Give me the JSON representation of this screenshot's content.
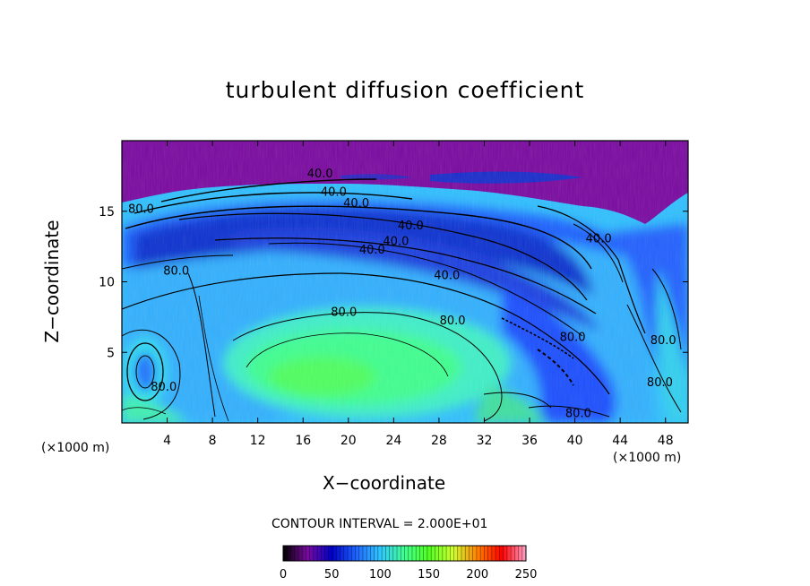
{
  "chart_data": {
    "type": "heatmap",
    "title": "turbulent diffusion coefficient",
    "xlabel": "X−coordinate",
    "ylabel": "Z−coordinate",
    "x_unit_label": "(×1000 m)",
    "x_unit_label_right": "(×1000 m)",
    "xlim": [
      0,
      50
    ],
    "ylim": [
      0,
      20
    ],
    "x_ticks": [
      4,
      8,
      12,
      16,
      20,
      24,
      28,
      32,
      36,
      40,
      44,
      48
    ],
    "y_ticks": [
      5,
      10,
      15
    ],
    "contour_interval_text": "CONTOUR INTERVAL = 2.000E+01",
    "contour_labels": [
      {
        "text": "40.0",
        "x": 17.5,
        "y": 17.4
      },
      {
        "text": "40.0",
        "x": 18.7,
        "y": 16.1
      },
      {
        "text": "40.0",
        "x": 20.7,
        "y": 15.3
      },
      {
        "text": "40.0",
        "x": 25.5,
        "y": 13.7
      },
      {
        "text": "40.0",
        "x": 24.2,
        "y": 12.6
      },
      {
        "text": "40.0",
        "x": 22.1,
        "y": 12.0
      },
      {
        "text": "40.0",
        "x": 28.7,
        "y": 10.2
      },
      {
        "text": "40.0",
        "x": 42.1,
        "y": 12.8
      },
      {
        "text": "80.0",
        "x": 1.7,
        "y": 14.9
      },
      {
        "text": "80.0",
        "x": 4.8,
        "y": 10.5
      },
      {
        "text": "80.0",
        "x": 19.6,
        "y": 7.6
      },
      {
        "text": "80.0",
        "x": 29.2,
        "y": 7.0
      },
      {
        "text": "80.0",
        "x": 3.7,
        "y": 2.3
      },
      {
        "text": "80.0",
        "x": 47.8,
        "y": 5.6
      },
      {
        "text": "80.0",
        "x": 47.5,
        "y": 2.6
      },
      {
        "text": "80.0",
        "x": 39.8,
        "y": 5.8
      },
      {
        "text": "80.0",
        "x": 40.3,
        "y": 0.4
      }
    ],
    "colorbar": {
      "range": [
        0,
        250
      ],
      "ticks": [
        0,
        50,
        100,
        150,
        200,
        250
      ],
      "colors": [
        "#000000",
        "#7a0aa0",
        "#0000c8",
        "#1e64ff",
        "#30c8ff",
        "#40ff90",
        "#50ff20",
        "#d0ff30",
        "#ff8000",
        "#ff0000",
        "#ffa0c8"
      ]
    },
    "colors": {
      "top_layer": "#7a0aa0",
      "dark_blue": "#1020c8",
      "blue": "#2070ff",
      "light_blue": "#30b0ff",
      "cyan": "#30e0f0",
      "green": "#40ff90",
      "bright_green": "#50ff40"
    }
  }
}
